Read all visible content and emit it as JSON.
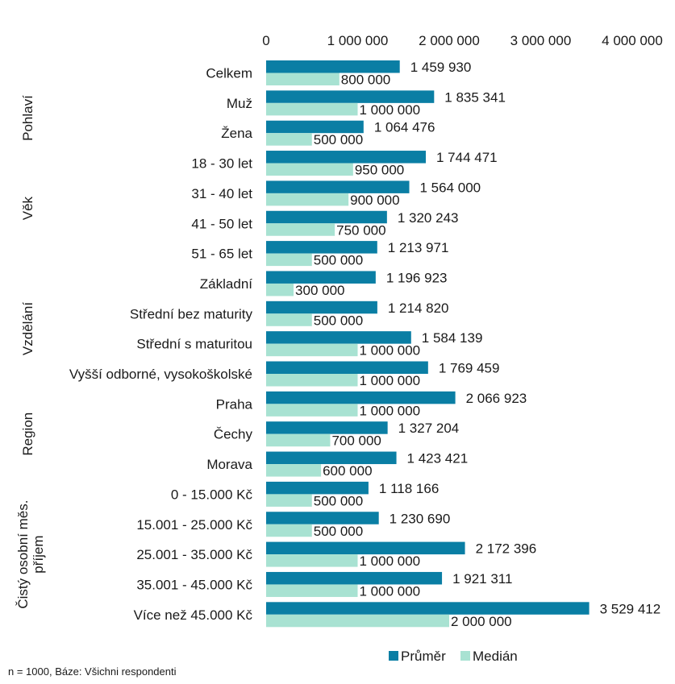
{
  "chart_data": {
    "type": "bar",
    "orientation": "horizontal",
    "xlim": [
      0,
      4000000
    ],
    "x_ticks": [
      "0",
      "1 000 000",
      "2 000 000",
      "3 000 000",
      "4 000 000"
    ],
    "x_axis_position": "top",
    "grid": false,
    "legend_position": "bottom",
    "categories": [
      "Celkem",
      "Muž",
      "Žena",
      "18 - 30 let",
      "31 - 40 let",
      "41 - 50 let",
      "51 - 65 let",
      "Základní",
      "Střední bez maturity",
      "Střední s maturitou",
      "Vyšší odborné, vysokoškolské",
      "Praha",
      "Čechy",
      "Morava",
      "0 - 15.000 Kč",
      "15.001 - 25.000 Kč",
      "25.001 - 35.000 Kč",
      "35.001 - 45.000 Kč",
      "Více než 45.000 Kč"
    ],
    "groups": [
      {
        "label": "Pohlaví",
        "categories": [
          "Muž",
          "Žena"
        ]
      },
      {
        "label": "Věk",
        "categories": [
          "18 - 30 let",
          "31 - 40 let",
          "41 - 50 let",
          "51 - 65 let"
        ]
      },
      {
        "label": "Vzdělání",
        "categories": [
          "Základní",
          "Střední bez maturity",
          "Střední s maturitou",
          "Vyšší odborné, vysokoškolské"
        ]
      },
      {
        "label": "Region",
        "categories": [
          "Praha",
          "Čechy",
          "Morava"
        ]
      },
      {
        "label": "Čistý osobní měs. příjem",
        "categories": [
          "0 - 15.000 Kč",
          "15.001 - 25.000 Kč",
          "25.001 - 35.000 Kč",
          "35.001 - 45.000 Kč",
          "Více než 45.000 Kč"
        ]
      }
    ],
    "series": [
      {
        "name": "Průměr",
        "color": "#0a7ea4",
        "values": [
          1459930,
          1835341,
          1064476,
          1744471,
          1564000,
          1320243,
          1213971,
          1196923,
          1214820,
          1584139,
          1769459,
          2066923,
          1327204,
          1423421,
          1118166,
          1230690,
          2172396,
          1921311,
          3529412
        ],
        "labels": [
          "1 459 930",
          "1 835 341",
          "1 064 476",
          "1 744 471",
          "1 564 000",
          "1 320 243",
          "1 213 971",
          "1 196 923",
          "1 214 820",
          "1 584 139",
          "1 769 459",
          "2 066 923",
          "1 327 204",
          "1 423 421",
          "1 118 166",
          "1 230 690",
          "2 172 396",
          "1 921 311",
          "3 529 412"
        ]
      },
      {
        "name": "Medián",
        "color": "#a8e2d2",
        "values": [
          800000,
          1000000,
          500000,
          950000,
          900000,
          750000,
          500000,
          300000,
          500000,
          1000000,
          1000000,
          1000000,
          700000,
          600000,
          500000,
          500000,
          1000000,
          1000000,
          2000000
        ],
        "labels": [
          "800 000",
          "1 000 000",
          "500 000",
          "950 000",
          "900 000",
          "750 000",
          "500 000",
          "300 000",
          "500 000",
          "1 000 000",
          "1 000 000",
          "1 000 000",
          "700 000",
          "600 000",
          "500 000",
          "500 000",
          "1 000 000",
          "1 000 000",
          "2 000 000"
        ]
      }
    ]
  },
  "footnote": "n = 1000, Báze: Všichni respondenti"
}
